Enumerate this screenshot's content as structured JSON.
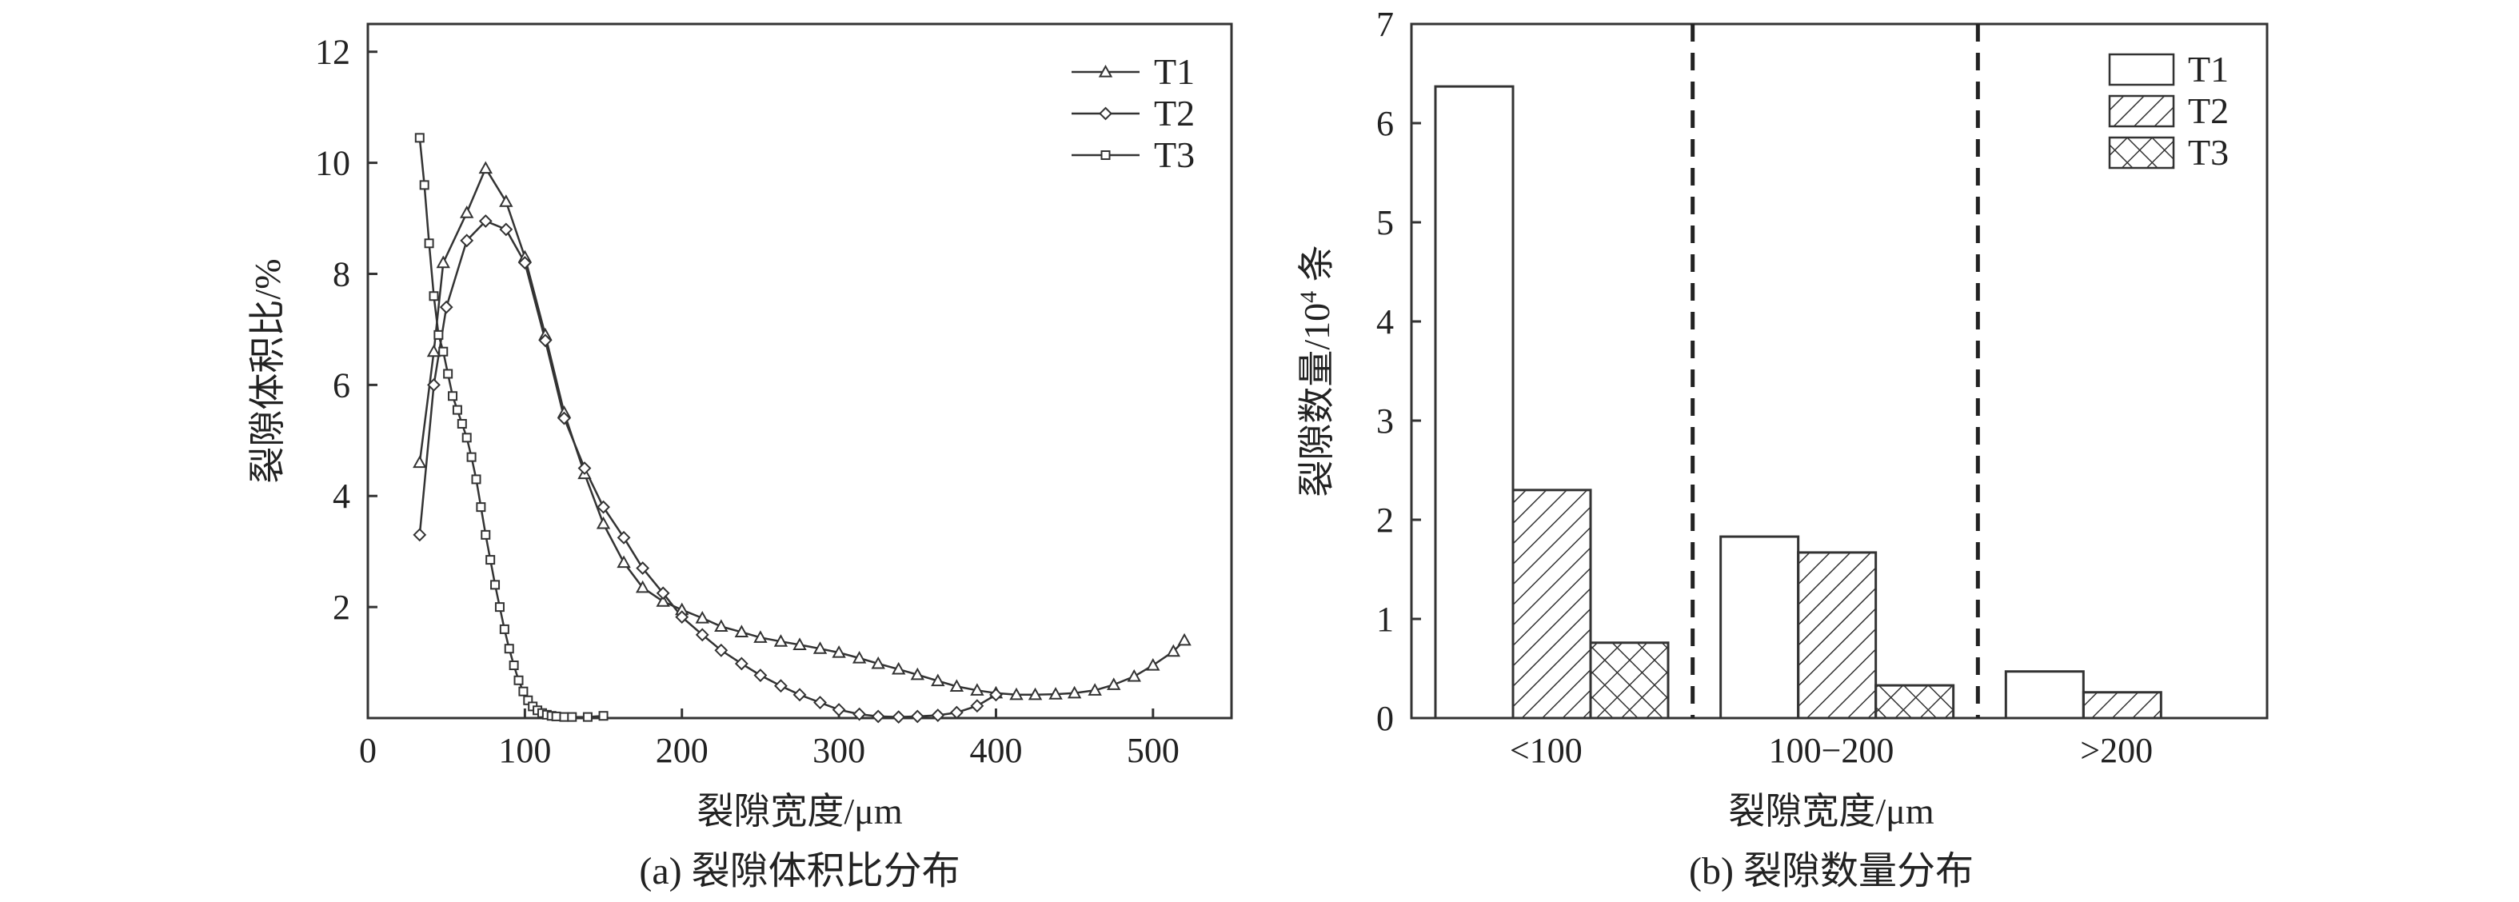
{
  "chart_data": [
    {
      "type": "line",
      "caption": "(a) 裂隙体积比分布",
      "xlabel": "裂隙宽度/μm",
      "ylabel": "裂隙体积比/%",
      "xlim": [
        0,
        550
      ],
      "ylim": [
        0,
        12.5
      ],
      "xticks": [
        0,
        100,
        200,
        300,
        400,
        500
      ],
      "yticks": [
        2,
        4,
        6,
        8,
        10,
        12
      ],
      "xtick_labels": [
        "0",
        "100",
        "200",
        "300",
        "400",
        "500"
      ],
      "ytick_labels": [
        "2",
        "4",
        "6",
        "8",
        "10",
        "12"
      ],
      "legend_position": "top-right",
      "series": [
        {
          "name": "T1",
          "marker": "triangle",
          "points": [
            [
              33,
              4.6
            ],
            [
              42,
              6.6
            ],
            [
              48,
              8.2
            ],
            [
              63,
              9.1
            ],
            [
              75,
              9.9
            ],
            [
              88,
              9.3
            ],
            [
              100,
              8.3
            ],
            [
              113,
              6.9
            ],
            [
              125,
              5.5
            ],
            [
              138,
              4.4
            ],
            [
              150,
              3.5
            ],
            [
              163,
              2.8
            ],
            [
              175,
              2.35
            ],
            [
              188,
              2.1
            ],
            [
              200,
              1.95
            ],
            [
              213,
              1.8
            ],
            [
              225,
              1.65
            ],
            [
              238,
              1.55
            ],
            [
              250,
              1.45
            ],
            [
              263,
              1.38
            ],
            [
              275,
              1.32
            ],
            [
              288,
              1.25
            ],
            [
              300,
              1.18
            ],
            [
              313,
              1.08
            ],
            [
              325,
              0.98
            ],
            [
              338,
              0.88
            ],
            [
              350,
              0.78
            ],
            [
              363,
              0.67
            ],
            [
              375,
              0.57
            ],
            [
              388,
              0.5
            ],
            [
              400,
              0.45
            ],
            [
              413,
              0.42
            ],
            [
              425,
              0.42
            ],
            [
              438,
              0.43
            ],
            [
              450,
              0.45
            ],
            [
              463,
              0.5
            ],
            [
              475,
              0.6
            ],
            [
              488,
              0.75
            ],
            [
              500,
              0.95
            ],
            [
              513,
              1.2
            ],
            [
              520,
              1.4
            ]
          ]
        },
        {
          "name": "T2",
          "marker": "diamond",
          "points": [
            [
              33,
              3.3
            ],
            [
              42,
              6.0
            ],
            [
              50,
              7.4
            ],
            [
              63,
              8.6
            ],
            [
              75,
              8.95
            ],
            [
              88,
              8.8
            ],
            [
              100,
              8.2
            ],
            [
              113,
              6.8
            ],
            [
              125,
              5.4
            ],
            [
              138,
              4.5
            ],
            [
              150,
              3.8
            ],
            [
              163,
              3.25
            ],
            [
              175,
              2.7
            ],
            [
              188,
              2.25
            ],
            [
              200,
              1.82
            ],
            [
              213,
              1.5
            ],
            [
              225,
              1.22
            ],
            [
              238,
              0.98
            ],
            [
              250,
              0.77
            ],
            [
              263,
              0.58
            ],
            [
              275,
              0.42
            ],
            [
              288,
              0.28
            ],
            [
              300,
              0.15
            ],
            [
              313,
              0.07
            ],
            [
              325,
              0.03
            ],
            [
              338,
              0.02
            ],
            [
              350,
              0.03
            ],
            [
              363,
              0.05
            ],
            [
              375,
              0.1
            ],
            [
              388,
              0.22
            ],
            [
              400,
              0.42
            ]
          ]
        },
        {
          "name": "T3",
          "marker": "square",
          "points": [
            [
              33,
              10.45
            ],
            [
              36,
              9.6
            ],
            [
              39,
              8.55
            ],
            [
              42,
              7.6
            ],
            [
              45,
              6.9
            ],
            [
              48,
              6.6
            ],
            [
              51,
              6.2
            ],
            [
              54,
              5.8
            ],
            [
              57,
              5.55
            ],
            [
              60,
              5.3
            ],
            [
              63,
              5.05
            ],
            [
              66,
              4.7
            ],
            [
              69,
              4.3
            ],
            [
              72,
              3.8
            ],
            [
              75,
              3.3
            ],
            [
              78,
              2.85
            ],
            [
              81,
              2.4
            ],
            [
              84,
              2.0
            ],
            [
              87,
              1.6
            ],
            [
              90,
              1.25
            ],
            [
              93,
              0.95
            ],
            [
              96,
              0.68
            ],
            [
              99,
              0.48
            ],
            [
              102,
              0.32
            ],
            [
              105,
              0.21
            ],
            [
              108,
              0.14
            ],
            [
              111,
              0.09
            ],
            [
              114,
              0.06
            ],
            [
              117,
              0.04
            ],
            [
              120,
              0.03
            ],
            [
              125,
              0.02
            ],
            [
              130,
              0.02
            ],
            [
              140,
              0.02
            ],
            [
              150,
              0.04
            ]
          ]
        }
      ]
    },
    {
      "type": "bar",
      "caption": "(b) 裂隙数量分布",
      "xlabel": "裂隙宽度/μm",
      "ylabel_main": "裂隙数量/10",
      "ylabel_sup": "4",
      "ylabel_tail": " 条",
      "ylim": [
        0,
        7
      ],
      "yticks": [
        0,
        1,
        2,
        3,
        4,
        5,
        6,
        7
      ],
      "ytick_labels": [
        "0",
        "1",
        "2",
        "3",
        "4",
        "5",
        "6",
        "7"
      ],
      "categories": [
        "<100",
        "100−200",
        ">200"
      ],
      "legend_position": "top-right",
      "series": [
        {
          "name": "T1",
          "pattern": "blank",
          "values": [
            6.37,
            1.83,
            0.47
          ]
        },
        {
          "name": "T2",
          "pattern": "hatch",
          "values": [
            2.3,
            1.67,
            0.26
          ]
        },
        {
          "name": "T3",
          "pattern": "crosshatch",
          "values": [
            0.76,
            0.33,
            0
          ]
        }
      ],
      "separators": "dashed"
    }
  ]
}
